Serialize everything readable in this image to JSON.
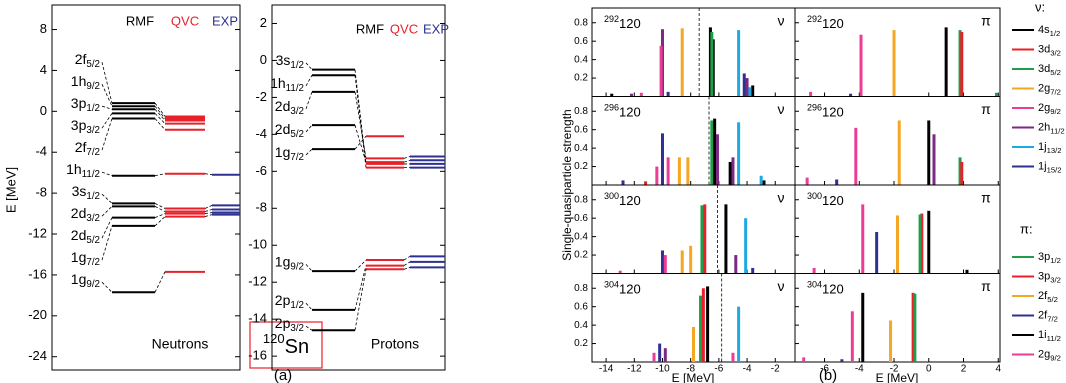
{
  "figure": {
    "nucleus": [
      "120",
      "Sn"
    ],
    "panel_a": "(a)",
    "panel_b": "(b)",
    "spectra_ylabel": "Single-quasiparticle strength",
    "spectra_xlabel": "E [MeV]"
  },
  "legends": [
    {
      "title": "ν:",
      "entries": [
        {
          "label": [
            "4s",
            "1/2"
          ],
          "color": "#000000"
        },
        {
          "label": [
            "3d",
            "3/2"
          ],
          "color": "#e8202a"
        },
        {
          "label": [
            "3d",
            "5/2"
          ],
          "color": "#1e9e4a"
        },
        {
          "label": [
            "2g",
            "7/2"
          ],
          "color": "#f5a623"
        },
        {
          "label": [
            "2g",
            "9/2"
          ],
          "color": "#ec3c96"
        },
        {
          "label": [
            "2h",
            "11/2"
          ],
          "color": "#7b2a83"
        },
        {
          "label": [
            "1j",
            "13/2"
          ],
          "color": "#1fa9e1"
        },
        {
          "label": [
            "1j",
            "15/2"
          ],
          "color": "#2e3192"
        }
      ]
    },
    {
      "title": "π:",
      "entries": [
        {
          "label": [
            "3p",
            "1/2"
          ],
          "color": "#1e9e4a"
        },
        {
          "label": [
            "3p",
            "3/2"
          ],
          "color": "#e8202a"
        },
        {
          "label": [
            "2f",
            "5/2"
          ],
          "color": "#f5a623"
        },
        {
          "label": [
            "2f",
            "7/2"
          ],
          "color": "#2e3192"
        },
        {
          "label": [
            "1i",
            "11/2"
          ],
          "color": "#000000"
        },
        {
          "label": [
            "2g",
            "9/2"
          ],
          "color": "#ec3c96"
        }
      ]
    }
  ],
  "chart_data": [
    {
      "type": "levels",
      "title": "Neutrons",
      "ylabel": "E [MeV]",
      "ylim": [
        -25.3,
        10.4
      ],
      "yticks": [
        8,
        4,
        0,
        -4,
        -8,
        -12,
        -16,
        -20,
        -24
      ],
      "levels": [
        [
          "2f",
          "5/2"
        ],
        [
          "1h",
          "9/2"
        ],
        [
          "3p",
          "1/2"
        ],
        [
          "3p",
          "3/2"
        ],
        [
          "2f",
          "7/2"
        ],
        [
          "1h",
          "11/2"
        ],
        [
          "3s",
          "1/2"
        ],
        [
          "2d",
          "3/2"
        ],
        [
          "2d",
          "5/2"
        ],
        [
          "1g",
          "7/2"
        ],
        [
          "1g",
          "9/2"
        ]
      ],
      "series": [
        {
          "name": "RMF",
          "color": "#000000",
          "values": [
            0.8,
            0.5,
            0.2,
            -0.2,
            -0.7,
            -6.3,
            -9.0,
            -9.3,
            -10.4,
            -11.2,
            -17.7
          ]
        },
        {
          "name": "QVC",
          "color": "#e8202a",
          "values": [
            -0.5,
            -0.7,
            -0.9,
            -1.2,
            -1.8,
            -6.1,
            -9.5,
            -9.8,
            -10.0,
            -10.3,
            -15.7
          ]
        },
        {
          "name": "EXP",
          "color": "#2e3192",
          "values": [
            null,
            null,
            null,
            null,
            null,
            -6.2,
            -9.2,
            -9.6,
            -9.9,
            -10.1,
            null
          ]
        }
      ]
    },
    {
      "type": "levels",
      "title": "Protons",
      "ylim": [
        -16.75,
        3.0
      ],
      "yticks": [
        2,
        0,
        -2,
        -4,
        -6,
        -8,
        -10,
        -12,
        -14,
        -16
      ],
      "levels": [
        [
          "3s",
          "1/2"
        ],
        [
          "1h",
          "11/2"
        ],
        [
          "2d",
          "3/2"
        ],
        [
          "2d",
          "5/2"
        ],
        [
          "1g",
          "7/2"
        ],
        [
          "1g",
          "9/2"
        ],
        [
          "2p",
          "1/2"
        ],
        [
          "2p",
          "3/2"
        ]
      ],
      "series": [
        {
          "name": "RMF",
          "color": "#000000",
          "values": [
            -0.5,
            -0.8,
            -1.7,
            -3.5,
            -4.8,
            -11.4,
            -13.5,
            -14.6
          ]
        },
        {
          "name": "QVC",
          "color": "#e8202a",
          "values": [
            -5.6,
            -5.8,
            -5.3,
            -5.5,
            -4.1,
            -10.8,
            -11.1,
            -11.3
          ]
        },
        {
          "name": "EXP",
          "color": "#2e3192",
          "values": [
            -5.6,
            -5.8,
            -5.2,
            -5.4,
            null,
            -10.6,
            -10.9,
            -11.2
          ]
        }
      ]
    },
    {
      "type": "spectrum",
      "nucleus": [
        "292",
        "120"
      ],
      "particle": "ν",
      "fermi": -7.4,
      "xlim": [
        -15,
        -0.6
      ],
      "xticks": [
        -14,
        -12,
        -10,
        -8,
        -6,
        -4,
        -2
      ],
      "ylim": [
        0,
        0.96
      ],
      "yticks": [
        0.2,
        0.4,
        0.6,
        0.8
      ],
      "series": [
        {
          "color": "#7b2a83",
          "x": [
            -10.0,
            -4.0,
            -12.2
          ],
          "values": [
            0.73,
            0.2,
            0.03
          ]
        },
        {
          "color": "#ec3c96",
          "x": [
            -10.1,
            -11.5
          ],
          "values": [
            0.55,
            0.04
          ]
        },
        {
          "color": "#f5a623",
          "x": [
            -8.6
          ],
          "values": [
            0.74
          ]
        },
        {
          "color": "#000000",
          "x": [
            -6.6,
            -6.4,
            -3.6,
            -13.6
          ],
          "values": [
            0.75,
            0.62,
            0.12,
            0.03
          ]
        },
        {
          "color": "#1e9e4a",
          "x": [
            -6.5
          ],
          "values": [
            0.7
          ]
        },
        {
          "color": "#1fa9e1",
          "x": [
            -4.6,
            -3.8
          ],
          "values": [
            0.72,
            0.1
          ]
        },
        {
          "color": "#2e3192",
          "x": [
            -4.2,
            -9.6
          ],
          "values": [
            0.25,
            0.05
          ]
        }
      ]
    },
    {
      "type": "spectrum",
      "nucleus": [
        "292",
        "120"
      ],
      "particle": "π",
      "xlim": [
        -7.7,
        4.1
      ],
      "xticks": [
        -6,
        -4,
        -2,
        0,
        2,
        4
      ],
      "ylim": [
        0,
        0.96
      ],
      "yticks": [
        0.2,
        0.4,
        0.6,
        0.8
      ],
      "series": [
        {
          "color": "#ec3c96",
          "x": [
            -3.9,
            -6.8
          ],
          "values": [
            0.67,
            0.05
          ]
        },
        {
          "color": "#f5a623",
          "x": [
            -2.0
          ],
          "values": [
            0.72
          ]
        },
        {
          "color": "#000000",
          "x": [
            1.0
          ],
          "values": [
            0.75
          ]
        },
        {
          "color": "#1e9e4a",
          "x": [
            1.8,
            3.9
          ],
          "values": [
            0.72,
            0.04
          ]
        },
        {
          "color": "#e8202a",
          "x": [
            1.9
          ],
          "values": [
            0.7
          ]
        },
        {
          "color": "#2e3192",
          "x": [
            -4.5
          ],
          "values": [
            0.03
          ]
        }
      ]
    },
    {
      "type": "spectrum",
      "nucleus": [
        "296",
        "120"
      ],
      "particle": "ν",
      "fermi": -6.7,
      "xlim": [
        -15,
        -0.6
      ],
      "xticks": [
        -14,
        -12,
        -10,
        -8,
        -6,
        -4,
        -2
      ],
      "ylim": [
        0,
        0.96
      ],
      "yticks": [
        0.2,
        0.4,
        0.6,
        0.8
      ],
      "series": [
        {
          "color": "#ec3c96",
          "x": [
            -10.4,
            -9.6
          ],
          "values": [
            0.2,
            0.3
          ]
        },
        {
          "color": "#2e3192",
          "x": [
            -10.0,
            -12.8
          ],
          "values": [
            0.56,
            0.05
          ]
        },
        {
          "color": "#f5a623",
          "x": [
            -8.8,
            -8.2
          ],
          "values": [
            0.3,
            0.3
          ]
        },
        {
          "color": "#1e9e4a",
          "x": [
            -6.5
          ],
          "values": [
            0.7
          ]
        },
        {
          "color": "#000000",
          "x": [
            -6.3,
            -5.2,
            -2.8
          ],
          "values": [
            0.72,
            0.25,
            0.05
          ]
        },
        {
          "color": "#7b2a83",
          "x": [
            -6.1,
            -5.0
          ],
          "values": [
            0.55,
            0.3
          ]
        },
        {
          "color": "#1fa9e1",
          "x": [
            -4.6,
            -3.0
          ],
          "values": [
            0.68,
            0.1
          ]
        },
        {
          "color": "#e8202a",
          "x": [
            -11.2
          ],
          "values": [
            0.04
          ]
        }
      ]
    },
    {
      "type": "spectrum",
      "nucleus": [
        "296",
        "120"
      ],
      "particle": "π",
      "xlim": [
        -7.7,
        4.1
      ],
      "xticks": [
        -6,
        -4,
        -2,
        0,
        2,
        4
      ],
      "ylim": [
        0,
        0.96
      ],
      "yticks": [
        0.2,
        0.4,
        0.6,
        0.8
      ],
      "series": [
        {
          "color": "#ec3c96",
          "x": [
            -4.2,
            -7.0
          ],
          "values": [
            0.62,
            0.08
          ]
        },
        {
          "color": "#f5a623",
          "x": [
            -1.7
          ],
          "values": [
            0.7
          ]
        },
        {
          "color": "#000000",
          "x": [
            0.0
          ],
          "values": [
            0.7
          ]
        },
        {
          "color": "#7b2a83",
          "x": [
            0.3
          ],
          "values": [
            0.55
          ]
        },
        {
          "color": "#1e9e4a",
          "x": [
            1.8
          ],
          "values": [
            0.3
          ]
        },
        {
          "color": "#e8202a",
          "x": [
            1.9
          ],
          "values": [
            0.25
          ]
        },
        {
          "color": "#2e3192",
          "x": [
            -5.3
          ],
          "values": [
            0.06
          ]
        }
      ]
    },
    {
      "type": "spectrum",
      "nucleus": [
        "300",
        "120"
      ],
      "particle": "ν",
      "fermi": -6.1,
      "xlim": [
        -15,
        -0.6
      ],
      "xticks": [
        -14,
        -12,
        -10,
        -8,
        -6,
        -4,
        -2
      ],
      "ylim": [
        0,
        0.96
      ],
      "yticks": [
        0.2,
        0.4,
        0.6,
        0.8
      ],
      "series": [
        {
          "color": "#2e3192",
          "x": [
            -10.0,
            -3.6
          ],
          "values": [
            0.25,
            0.06
          ]
        },
        {
          "color": "#ec3c96",
          "x": [
            -9.8,
            -13.0
          ],
          "values": [
            0.2,
            0.03
          ]
        },
        {
          "color": "#f5a623",
          "x": [
            -8.6,
            -8.0
          ],
          "values": [
            0.25,
            0.3
          ]
        },
        {
          "color": "#1e9e4a",
          "x": [
            -7.2
          ],
          "values": [
            0.74
          ]
        },
        {
          "color": "#e8202a",
          "x": [
            -7.0
          ],
          "values": [
            0.75
          ]
        },
        {
          "color": "#000000",
          "x": [
            -5.5
          ],
          "values": [
            0.75
          ]
        },
        {
          "color": "#7b2a83",
          "x": [
            -4.8
          ],
          "values": [
            0.2
          ]
        },
        {
          "color": "#1fa9e1",
          "x": [
            -4.1
          ],
          "values": [
            0.6
          ]
        }
      ]
    },
    {
      "type": "spectrum",
      "nucleus": [
        "300",
        "120"
      ],
      "particle": "π",
      "xlim": [
        -7.7,
        4.1
      ],
      "xticks": [
        -6,
        -4,
        -2,
        0,
        2,
        4
      ],
      "ylim": [
        0,
        0.96
      ],
      "yticks": [
        0.2,
        0.4,
        0.6,
        0.8
      ],
      "series": [
        {
          "color": "#ec3c96",
          "x": [
            -3.8,
            -6.6
          ],
          "values": [
            0.75,
            0.06
          ]
        },
        {
          "color": "#2e3192",
          "x": [
            -3.0
          ],
          "values": [
            0.45
          ]
        },
        {
          "color": "#f5a623",
          "x": [
            -1.8
          ],
          "values": [
            0.63
          ]
        },
        {
          "color": "#e8202a",
          "x": [
            -0.4
          ],
          "values": [
            0.65
          ]
        },
        {
          "color": "#1e9e4a",
          "x": [
            -0.5
          ],
          "values": [
            0.64
          ]
        },
        {
          "color": "#000000",
          "x": [
            0.0,
            2.2
          ],
          "values": [
            0.68,
            0.04
          ]
        }
      ]
    },
    {
      "type": "spectrum",
      "nucleus": [
        "304",
        "120"
      ],
      "particle": "ν",
      "fermi": -5.8,
      "xlim": [
        -15,
        -0.6
      ],
      "xticks": [
        -14,
        -12,
        -10,
        -8,
        -6,
        -4,
        -2
      ],
      "ylim": [
        0,
        0.96
      ],
      "yticks": [
        0.2,
        0.4,
        0.6,
        0.8
      ],
      "series": [
        {
          "color": "#2e3192",
          "x": [
            -10.2
          ],
          "values": [
            0.2
          ]
        },
        {
          "color": "#7b2a83",
          "x": [
            -9.8
          ],
          "values": [
            0.15
          ]
        },
        {
          "color": "#ec3c96",
          "x": [
            -10.6,
            -5.0
          ],
          "values": [
            0.1,
            0.1
          ]
        },
        {
          "color": "#f5a623",
          "x": [
            -7.8
          ],
          "values": [
            0.38
          ]
        },
        {
          "color": "#1e9e4a",
          "x": [
            -7.3
          ],
          "values": [
            0.72
          ]
        },
        {
          "color": "#e8202a",
          "x": [
            -7.1
          ],
          "values": [
            0.8
          ]
        },
        {
          "color": "#000000",
          "x": [
            -6.8
          ],
          "values": [
            0.82
          ]
        },
        {
          "color": "#1fa9e1",
          "x": [
            -4.6
          ],
          "values": [
            0.6
          ]
        }
      ]
    },
    {
      "type": "spectrum",
      "nucleus": [
        "304",
        "120"
      ],
      "particle": "π",
      "xlim": [
        -7.7,
        4.1
      ],
      "xticks": [
        -6,
        -4,
        -2,
        0,
        2,
        4
      ],
      "ylim": [
        0,
        0.96
      ],
      "yticks": [
        0.2,
        0.4,
        0.6,
        0.8
      ],
      "series": [
        {
          "color": "#ec3c96",
          "x": [
            -4.4,
            -7.2
          ],
          "values": [
            0.55,
            0.05
          ]
        },
        {
          "color": "#000000",
          "x": [
            -3.8
          ],
          "values": [
            0.75
          ]
        },
        {
          "color": "#f5a623",
          "x": [
            -2.2
          ],
          "values": [
            0.45
          ]
        },
        {
          "color": "#e8202a",
          "x": [
            -0.9
          ],
          "values": [
            0.75
          ]
        },
        {
          "color": "#1e9e4a",
          "x": [
            -0.8
          ],
          "values": [
            0.74
          ]
        },
        {
          "color": "#2e3192",
          "x": [
            -5.0
          ],
          "values": [
            0.03
          ]
        }
      ]
    }
  ]
}
